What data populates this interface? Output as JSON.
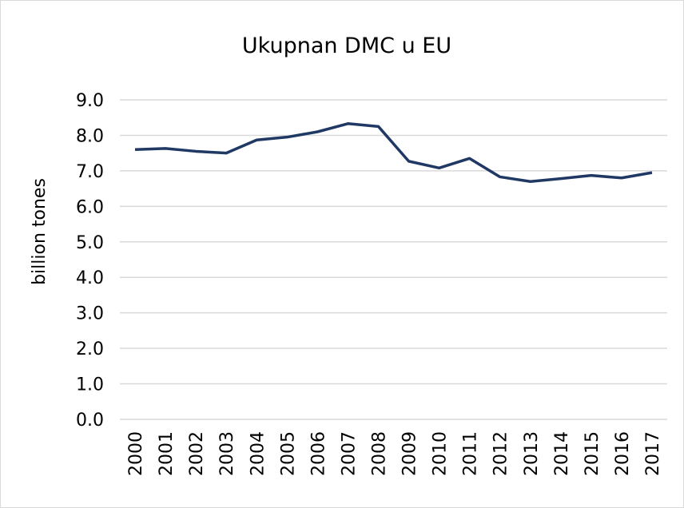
{
  "chart_data": {
    "type": "line",
    "title": "Ukupnan DMC u EU",
    "y_label": "billion tones",
    "categories": [
      "2000",
      "2001",
      "2002",
      "2003",
      "2004",
      "2005",
      "2006",
      "2007",
      "2008",
      "2009",
      "2010",
      "2011",
      "2012",
      "2013",
      "2014",
      "2015",
      "2016",
      "2017"
    ],
    "series": [
      {
        "name": "DMC",
        "color": "#1f3864",
        "values": [
          7.6,
          7.63,
          7.55,
          7.5,
          7.87,
          7.95,
          8.1,
          8.33,
          8.25,
          7.27,
          7.08,
          7.35,
          6.83,
          6.7,
          6.78,
          6.87,
          6.8,
          6.95
        ]
      }
    ],
    "ylim": [
      0,
      9
    ],
    "yticks": [
      {
        "value": 0,
        "label": "0.0"
      },
      {
        "value": 1,
        "label": "1.0"
      },
      {
        "value": 2,
        "label": "2.0"
      },
      {
        "value": 3,
        "label": "3.0"
      },
      {
        "value": 4,
        "label": "4.0"
      },
      {
        "value": 5,
        "label": "5.0"
      },
      {
        "value": 6,
        "label": "6.0"
      },
      {
        "value": 7,
        "label": "7.0"
      },
      {
        "value": 8,
        "label": "8.0"
      },
      {
        "value": 9,
        "label": "9.0"
      }
    ],
    "grid": true
  }
}
